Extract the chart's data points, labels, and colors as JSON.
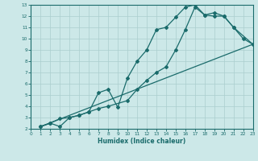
{
  "xlabel": "Humidex (Indice chaleur)",
  "bg_color": "#cce8e8",
  "line_color": "#1a6b6b",
  "grid_color": "#aacece",
  "xlim": [
    0,
    23
  ],
  "ylim": [
    2,
    13
  ],
  "xticks": [
    0,
    1,
    2,
    3,
    4,
    5,
    6,
    7,
    8,
    9,
    10,
    11,
    12,
    13,
    14,
    15,
    16,
    17,
    18,
    19,
    20,
    21,
    22,
    23
  ],
  "yticks": [
    2,
    3,
    4,
    5,
    6,
    7,
    8,
    9,
    10,
    11,
    12,
    13
  ],
  "curve1_x": [
    1,
    2,
    3,
    4,
    5,
    6,
    7,
    8,
    10,
    11,
    12,
    13,
    14,
    15,
    16,
    17,
    18,
    19,
    20,
    21,
    22,
    23
  ],
  "curve1_y": [
    2.2,
    2.5,
    2.2,
    3.0,
    3.2,
    3.5,
    3.8,
    4.0,
    4.5,
    5.5,
    6.3,
    7.0,
    7.5,
    9.0,
    10.8,
    12.8,
    12.1,
    12.3,
    12.0,
    11.0,
    10.0,
    9.5
  ],
  "curve2_x": [
    1,
    2,
    3,
    4,
    5,
    6,
    7,
    8,
    9,
    10,
    11,
    12,
    13,
    14,
    15,
    16,
    17,
    18,
    19,
    20,
    21,
    23
  ],
  "curve2_y": [
    2.2,
    2.5,
    2.9,
    3.0,
    3.2,
    3.5,
    5.2,
    5.5,
    3.9,
    6.5,
    8.0,
    9.0,
    10.8,
    11.0,
    11.9,
    12.8,
    13.0,
    12.1,
    12.0,
    12.0,
    11.0,
    9.5
  ],
  "line3_x": [
    1,
    23
  ],
  "line3_y": [
    2.2,
    9.5
  ]
}
